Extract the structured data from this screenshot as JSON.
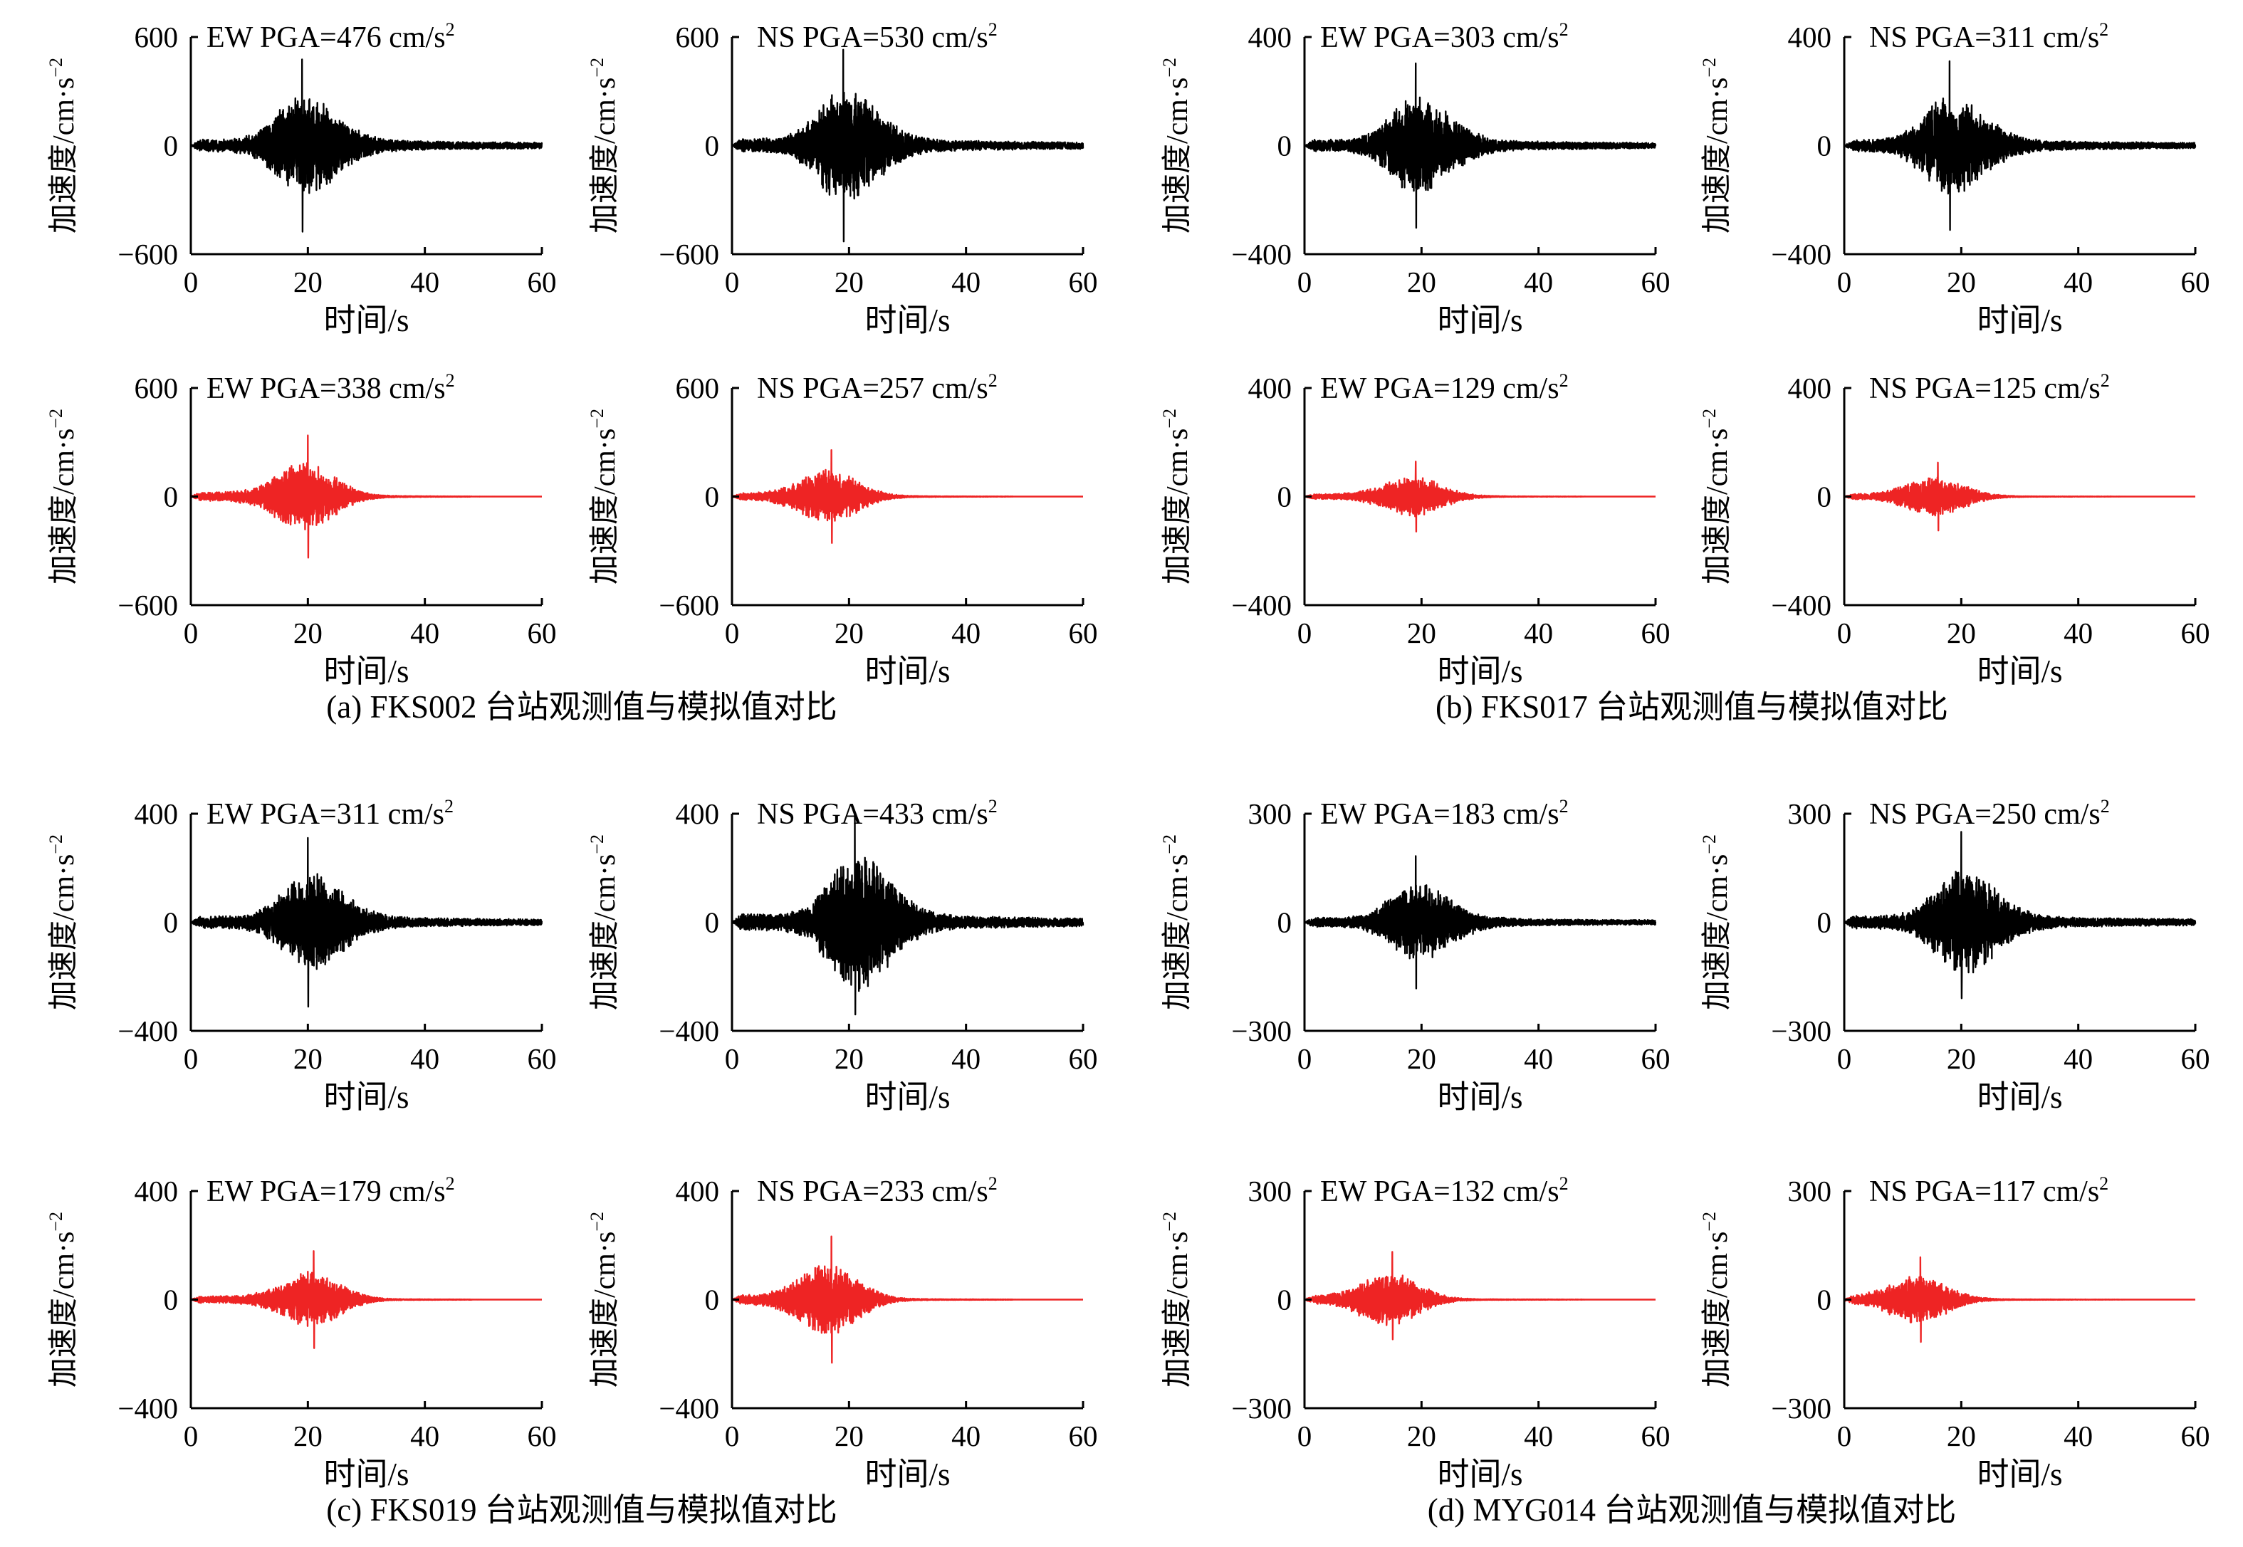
{
  "chart_data": [
    {
      "type": "line",
      "panel": "a",
      "row": "observed",
      "component": "EW",
      "annotation": "EW PGA=476 cm/s",
      "annotation_sup": "2",
      "pga": 476,
      "ylim": [
        -600,
        600
      ],
      "yticks": [
        "600",
        "0",
        "−600"
      ],
      "xlim": [
        0,
        60
      ],
      "xticks": [
        "0",
        "20",
        "40",
        "60"
      ],
      "xlabel": "时间/s",
      "ylabel": "加速度/cm·s",
      "ylabel_sup": "−2",
      "color": "#000000",
      "peak_time": 19,
      "neg_peak": -476
    },
    {
      "type": "line",
      "panel": "a",
      "row": "observed",
      "component": "NS",
      "annotation": "NS PGA=530 cm/s",
      "annotation_sup": "2",
      "pga": 530,
      "ylim": [
        -600,
        600
      ],
      "yticks": [
        "600",
        "0",
        "−600"
      ],
      "xlim": [
        0,
        60
      ],
      "xticks": [
        "0",
        "20",
        "40",
        "60"
      ],
      "xlabel": "时间/s",
      "ylabel": "加速度/cm·s",
      "ylabel_sup": "−2",
      "color": "#000000",
      "peak_time": 19,
      "neg_peak": -530
    },
    {
      "type": "line",
      "panel": "b",
      "row": "observed",
      "component": "EW",
      "annotation": "EW PGA=303 cm/s",
      "annotation_sup": "2",
      "pga": 303,
      "ylim": [
        -400,
        400
      ],
      "yticks": [
        "400",
        "0",
        "−400"
      ],
      "xlim": [
        0,
        60
      ],
      "xticks": [
        "0",
        "20",
        "40",
        "60"
      ],
      "xlabel": "时间/s",
      "ylabel": "加速度/cm·s",
      "ylabel_sup": "−2",
      "color": "#000000",
      "peak_time": 19,
      "neg_peak": -303
    },
    {
      "type": "line",
      "panel": "b",
      "row": "observed",
      "component": "NS",
      "annotation": "NS PGA=311 cm/s",
      "annotation_sup": "2",
      "pga": 311,
      "ylim": [
        -400,
        400
      ],
      "yticks": [
        "400",
        "0",
        "−400"
      ],
      "xlim": [
        0,
        60
      ],
      "xticks": [
        "0",
        "20",
        "40",
        "60"
      ],
      "xlabel": "时间/s",
      "ylabel": "加速度/cm·s",
      "ylabel_sup": "−2",
      "color": "#000000",
      "peak_time": 18,
      "neg_peak": -311
    },
    {
      "type": "line",
      "panel": "a",
      "row": "simulated",
      "component": "EW",
      "annotation": "EW PGA=338 cm/s",
      "annotation_sup": "2",
      "pga": 338,
      "ylim": [
        -600,
        600
      ],
      "yticks": [
        "600",
        "0",
        "−600"
      ],
      "xlim": [
        0,
        60
      ],
      "xticks": [
        "0",
        "20",
        "40",
        "60"
      ],
      "xlabel": "时间/s",
      "ylabel": "加速度/cm·s",
      "ylabel_sup": "−2",
      "color": "#ee2424",
      "peak_time": 20,
      "neg_peak": -338
    },
    {
      "type": "line",
      "panel": "a",
      "row": "simulated",
      "component": "NS",
      "annotation": "NS PGA=257 cm/s",
      "annotation_sup": "2",
      "pga": 257,
      "ylim": [
        -600,
        600
      ],
      "yticks": [
        "600",
        "0",
        "−600"
      ],
      "xlim": [
        0,
        60
      ],
      "xticks": [
        "0",
        "20",
        "40",
        "60"
      ],
      "xlabel": "时间/s",
      "ylabel": "加速度/cm·s",
      "ylabel_sup": "−2",
      "color": "#ee2424",
      "peak_time": 17,
      "neg_peak": -257
    },
    {
      "type": "line",
      "panel": "b",
      "row": "simulated",
      "component": "EW",
      "annotation": "EW PGA=129 cm/s",
      "annotation_sup": "2",
      "pga": 129,
      "ylim": [
        -400,
        400
      ],
      "yticks": [
        "400",
        "0",
        "−400"
      ],
      "xlim": [
        0,
        60
      ],
      "xticks": [
        "0",
        "20",
        "40",
        "60"
      ],
      "xlabel": "时间/s",
      "ylabel": "加速度/cm·s",
      "ylabel_sup": "−2",
      "color": "#ee2424",
      "peak_time": 19,
      "neg_peak": -129
    },
    {
      "type": "line",
      "panel": "b",
      "row": "simulated",
      "component": "NS",
      "annotation": "NS PGA=125 cm/s",
      "annotation_sup": "2",
      "pga": 125,
      "ylim": [
        -400,
        400
      ],
      "yticks": [
        "400",
        "0",
        "−400"
      ],
      "xlim": [
        0,
        60
      ],
      "xticks": [
        "0",
        "20",
        "40",
        "60"
      ],
      "xlabel": "时间/s",
      "ylabel": "加速度/cm·s",
      "ylabel_sup": "−2",
      "color": "#ee2424",
      "peak_time": 16,
      "neg_peak": -125
    },
    {
      "type": "line",
      "panel": "c",
      "row": "observed",
      "component": "EW",
      "annotation": "EW PGA=311 cm/s",
      "annotation_sup": "2",
      "pga": 311,
      "ylim": [
        -400,
        400
      ],
      "yticks": [
        "400",
        "0",
        "−400"
      ],
      "xlim": [
        0,
        60
      ],
      "xticks": [
        "0",
        "20",
        "40",
        "60"
      ],
      "xlabel": "时间/s",
      "ylabel": "加速度/cm·s",
      "ylabel_sup": "−2",
      "color": "#000000",
      "peak_time": 20,
      "neg_peak": -311
    },
    {
      "type": "line",
      "panel": "c",
      "row": "observed",
      "component": "NS",
      "annotation": "NS PGA=433 cm/s",
      "annotation_sup": "2",
      "pga": 433,
      "ylim": [
        -400,
        400
      ],
      "yticks": [
        "400",
        "0",
        "−400"
      ],
      "xlim": [
        0,
        60
      ],
      "xticks": [
        "0",
        "20",
        "40",
        "60"
      ],
      "xlabel": "时间/s",
      "ylabel": "加速度/cm·s",
      "ylabel_sup": "−2",
      "color": "#000000",
      "peak_time": 21,
      "neg_peak": -340
    },
    {
      "type": "line",
      "panel": "d",
      "row": "observed",
      "component": "EW",
      "annotation": "EW PGA=183 cm/s",
      "annotation_sup": "2",
      "pga": 183,
      "ylim": [
        -300,
        300
      ],
      "yticks": [
        "300",
        "0",
        "−300"
      ],
      "xlim": [
        0,
        60
      ],
      "xticks": [
        "0",
        "20",
        "40",
        "60"
      ],
      "xlabel": "时间/s",
      "ylabel": "加速度/cm·s",
      "ylabel_sup": "−2",
      "color": "#000000",
      "peak_time": 19,
      "neg_peak": -183
    },
    {
      "type": "line",
      "panel": "d",
      "row": "observed",
      "component": "NS",
      "annotation": "NS PGA=250 cm/s",
      "annotation_sup": "2",
      "pga": 250,
      "ylim": [
        -300,
        300
      ],
      "yticks": [
        "300",
        "0",
        "−300"
      ],
      "xlim": [
        0,
        60
      ],
      "xticks": [
        "0",
        "20",
        "40",
        "60"
      ],
      "xlabel": "时间/s",
      "ylabel": "加速度/cm·s",
      "ylabel_sup": "−2",
      "color": "#000000",
      "peak_time": 20,
      "neg_peak": -210
    },
    {
      "type": "line",
      "panel": "c",
      "row": "simulated",
      "component": "EW",
      "annotation": "EW PGA=179 cm/s",
      "annotation_sup": "2",
      "pga": 179,
      "ylim": [
        -400,
        400
      ],
      "yticks": [
        "400",
        "0",
        "−400"
      ],
      "xlim": [
        0,
        60
      ],
      "xticks": [
        "0",
        "20",
        "40",
        "60"
      ],
      "xlabel": "时间/s",
      "ylabel": "加速度/cm·s",
      "ylabel_sup": "−2",
      "color": "#ee2424",
      "peak_time": 21,
      "neg_peak": -179
    },
    {
      "type": "line",
      "panel": "c",
      "row": "simulated",
      "component": "NS",
      "annotation": "NS PGA=233 cm/s",
      "annotation_sup": "2",
      "pga": 233,
      "ylim": [
        -400,
        400
      ],
      "yticks": [
        "400",
        "0",
        "−400"
      ],
      "xlim": [
        0,
        60
      ],
      "xticks": [
        "0",
        "20",
        "40",
        "60"
      ],
      "xlabel": "时间/s",
      "ylabel": "加速度/cm·s",
      "ylabel_sup": "−2",
      "color": "#ee2424",
      "peak_time": 17,
      "neg_peak": -233
    },
    {
      "type": "line",
      "panel": "d",
      "row": "simulated",
      "component": "EW",
      "annotation": "EW PGA=132 cm/s",
      "annotation_sup": "2",
      "pga": 132,
      "ylim": [
        -300,
        300
      ],
      "yticks": [
        "300",
        "0",
        "−300"
      ],
      "xlim": [
        0,
        60
      ],
      "xticks": [
        "0",
        "20",
        "40",
        "60"
      ],
      "xlabel": "时间/s",
      "ylabel": "加速度/cm·s",
      "ylabel_sup": "−2",
      "color": "#ee2424",
      "peak_time": 15,
      "neg_peak": -110
    },
    {
      "type": "line",
      "panel": "d",
      "row": "simulated",
      "component": "NS",
      "annotation": "NS PGA=117 cm/s",
      "annotation_sup": "2",
      "pga": 117,
      "ylim": [
        -300,
        300
      ],
      "yticks": [
        "300",
        "0",
        "−300"
      ],
      "xlim": [
        0,
        60
      ],
      "xticks": [
        "0",
        "20",
        "40",
        "60"
      ],
      "xlabel": "时间/s",
      "ylabel": "加速度/cm·s",
      "ylabel_sup": "−2",
      "color": "#ee2424",
      "peak_time": 13,
      "neg_peak": -117
    }
  ],
  "captions": [
    {
      "panel": "a",
      "text": "(a) FKS002 台站观测值与模拟值对比"
    },
    {
      "panel": "b",
      "text": "(b) FKS017 台站观测值与模拟值对比"
    },
    {
      "panel": "c",
      "text": "(c) FKS019 台站观测值与模拟值对比"
    },
    {
      "panel": "d",
      "text": "(d) MYG014 台站观测值与模拟值对比"
    }
  ]
}
